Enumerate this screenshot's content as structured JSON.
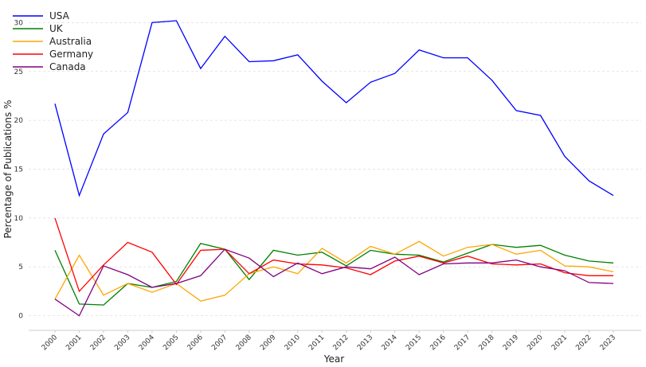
{
  "chart_data": {
    "type": "line",
    "title": "",
    "xlabel": "Year",
    "ylabel": "Percentage of Publications %",
    "x": [
      "2000",
      "2001",
      "2002",
      "2003",
      "2004",
      "2005",
      "2006",
      "2007",
      "2008",
      "2009",
      "2010",
      "2011",
      "2012",
      "2013",
      "2014",
      "2015",
      "2016",
      "2017",
      "2018",
      "2019",
      "2020",
      "2021",
      "2022",
      "2023"
    ],
    "ylim": [
      -1.5,
      31.5
    ],
    "yticks": [
      0,
      5,
      10,
      15,
      20,
      25,
      30
    ],
    "grid": "horizontal",
    "legend_position": "top-left",
    "series": [
      {
        "name": "USA",
        "color": "#0000ff",
        "values": [
          21.7,
          12.3,
          18.6,
          20.8,
          30.0,
          30.2,
          25.3,
          28.6,
          26.0,
          26.1,
          26.7,
          24.0,
          21.8,
          23.9,
          24.8,
          27.2,
          26.4,
          26.4,
          24.1,
          21.0,
          20.5,
          16.3,
          13.8,
          12.3
        ]
      },
      {
        "name": "UK",
        "color": "#008000",
        "values": [
          6.7,
          1.2,
          1.1,
          3.3,
          2.9,
          3.5,
          7.4,
          6.8,
          3.7,
          6.7,
          6.2,
          6.5,
          5.1,
          6.7,
          6.3,
          6.2,
          5.5,
          6.4,
          7.3,
          7.0,
          7.2,
          6.2,
          5.6,
          5.4
        ]
      },
      {
        "name": "Australia",
        "color": "#ffa500",
        "values": [
          1.7,
          6.2,
          2.1,
          3.3,
          2.4,
          3.3,
          1.5,
          2.1,
          4.3,
          5.0,
          4.3,
          6.9,
          5.4,
          7.1,
          6.3,
          7.6,
          6.1,
          7.0,
          7.3,
          6.3,
          6.7,
          5.1,
          5.0,
          4.5
        ]
      },
      {
        "name": "Germany",
        "color": "#ff0000",
        "values": [
          10.0,
          2.5,
          5.2,
          7.5,
          6.5,
          3.2,
          6.7,
          6.8,
          4.3,
          5.7,
          5.3,
          5.2,
          4.9,
          4.2,
          5.6,
          6.1,
          5.4,
          6.1,
          5.3,
          5.2,
          5.3,
          4.4,
          4.1,
          4.1
        ]
      },
      {
        "name": "Canada",
        "color": "#800080",
        "values": [
          1.7,
          0.0,
          5.1,
          4.2,
          2.9,
          3.3,
          4.1,
          6.8,
          5.9,
          4.0,
          5.4,
          4.3,
          5.0,
          4.8,
          6.0,
          4.2,
          5.3,
          5.4,
          5.4,
          5.7,
          5.0,
          4.6,
          3.4,
          3.3
        ]
      }
    ]
  }
}
